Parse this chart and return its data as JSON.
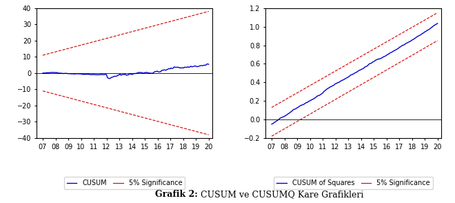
{
  "title_bold": "Grafik 2:",
  "title_normal": " CUSUM ve CUSUMQ Kare Grafikleri",
  "cusum_ylim": [
    -40,
    40
  ],
  "cusum_yticks": [
    -40,
    -30,
    -20,
    -10,
    0,
    10,
    20,
    30,
    40
  ],
  "cusum_xlabel_fmt": [
    "07",
    "08",
    "09",
    "10",
    "11",
    "12",
    "13",
    "14",
    "15",
    "16",
    "17",
    "18",
    "19",
    "20"
  ],
  "cusumq_ylim": [
    -0.2,
    1.2
  ],
  "cusumq_yticks": [
    -0.2,
    0.0,
    0.2,
    0.4,
    0.6,
    0.8,
    1.0,
    1.2
  ],
  "cusumq_xlabel_fmt": [
    "07",
    "08",
    "09",
    "10",
    "11",
    "12",
    "13",
    "14",
    "15",
    "16",
    "17",
    "18",
    "19",
    "20"
  ],
  "line_color_blue": "#0000CC",
  "line_color_red": "#CC0000",
  "background_color": "#FFFFFF",
  "legend_fontsize": 7,
  "tick_fontsize": 7,
  "title_fontsize": 9
}
